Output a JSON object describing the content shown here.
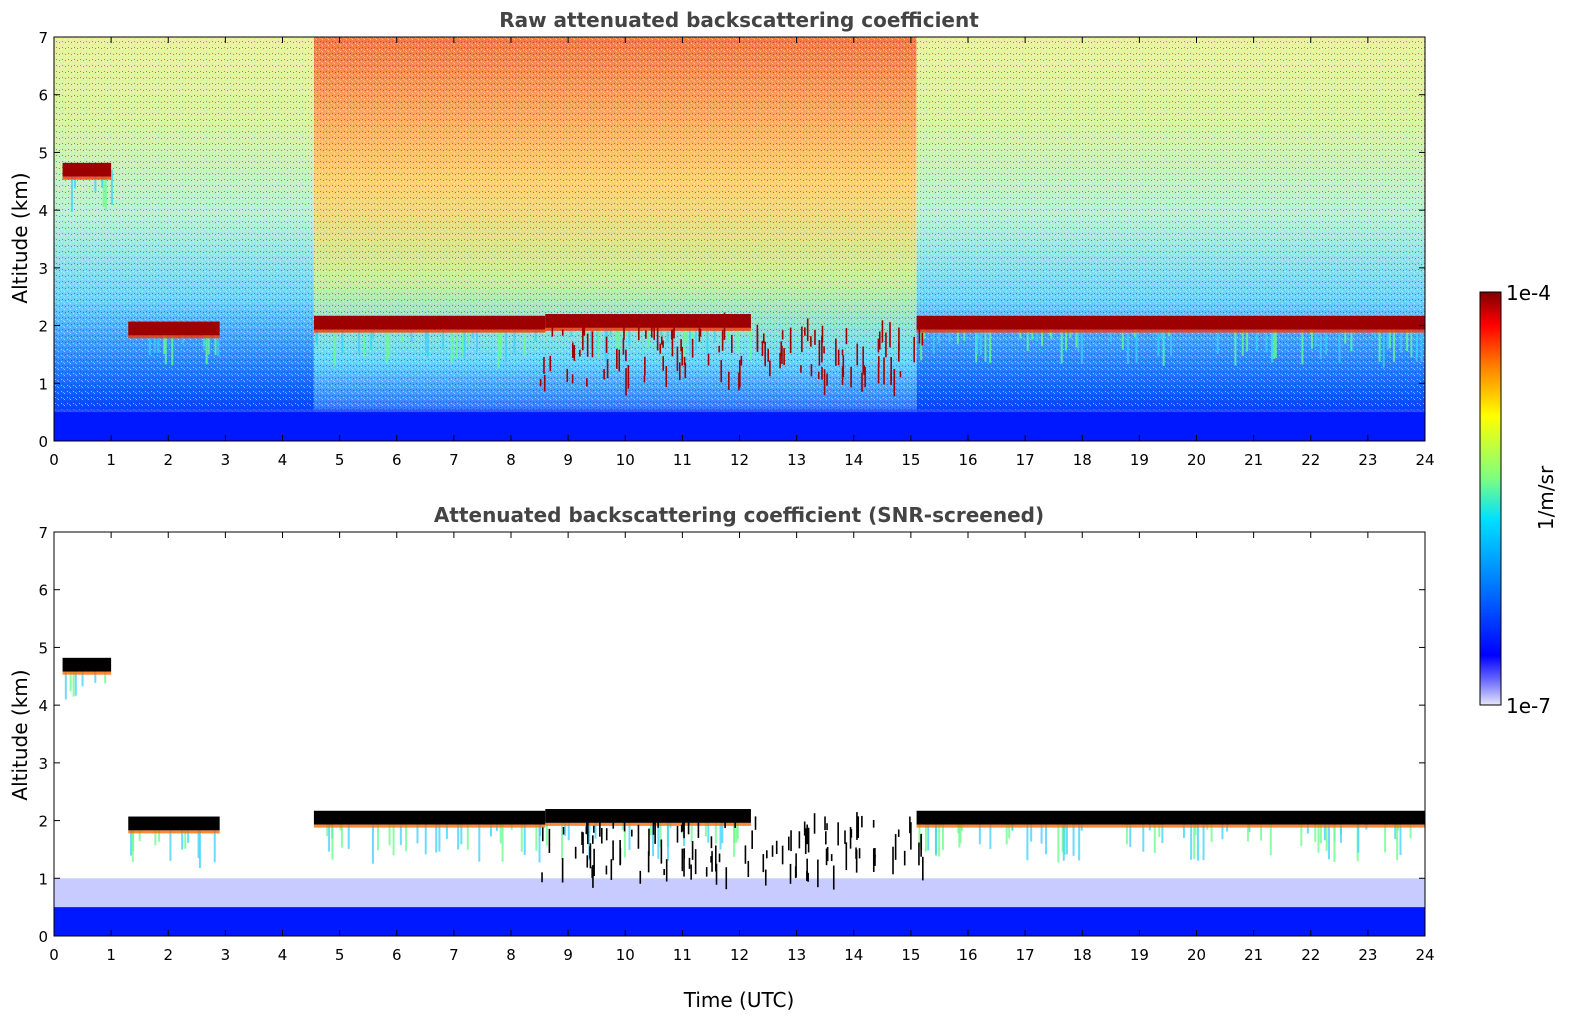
{
  "colors": {
    "jet_low": "#00007f",
    "jet_mid": "#7fff7f",
    "jet_high": "#7f0000",
    "lightest": "#e6e6fa",
    "cloud_top_screened": "#000000"
  },
  "chart_data": [
    {
      "type": "heatmap",
      "title": "Raw attenuated backscattering coefficient",
      "xlabel": "",
      "ylabel": "Altitude (km)",
      "xlim": [
        0,
        24
      ],
      "ylim": [
        0,
        7
      ],
      "xticks": [
        "0",
        "1",
        "2",
        "3",
        "4",
        "5",
        "6",
        "7",
        "8",
        "9",
        "10",
        "11",
        "12",
        "13",
        "14",
        "15",
        "16",
        "17",
        "18",
        "19",
        "20",
        "21",
        "22",
        "23",
        "24"
      ],
      "yticks": [
        "0",
        "1",
        "2",
        "3",
        "4",
        "5",
        "6",
        "7"
      ],
      "features": [
        {
          "name": "cloud layer",
          "t_start": 0.15,
          "t_end": 1.0,
          "alt_km": 4.7
        },
        {
          "name": "cloud layer",
          "t_start": 1.3,
          "t_end": 2.9,
          "alt_km": 1.95
        },
        {
          "name": "cloud layer",
          "t_start": 4.55,
          "t_end": 8.6,
          "alt_km": 2.05
        },
        {
          "name": "cloud layer",
          "t_start": 8.6,
          "t_end": 12.2,
          "alt_km": 2.08
        },
        {
          "name": "cloud layer",
          "t_start": 15.1,
          "t_end": 24.0,
          "alt_km": 2.05
        },
        {
          "name": "broken clouds",
          "t_start": 8.5,
          "t_end": 15.2,
          "alt_km": 1.5
        }
      ],
      "noise_increase_window": [
        4.55,
        15.1
      ]
    },
    {
      "type": "heatmap",
      "title": "Attenuated backscattering coefficient (SNR-screened)",
      "xlabel": "Time (UTC)",
      "ylabel": "Altitude (km)",
      "xlim": [
        0,
        24
      ],
      "ylim": [
        0,
        7
      ],
      "xticks": [
        "0",
        "1",
        "2",
        "3",
        "4",
        "5",
        "6",
        "7",
        "8",
        "9",
        "10",
        "11",
        "12",
        "13",
        "14",
        "15",
        "16",
        "17",
        "18",
        "19",
        "20",
        "21",
        "22",
        "23",
        "24"
      ],
      "yticks": [
        "0",
        "1",
        "2",
        "3",
        "4",
        "5",
        "6",
        "7"
      ],
      "features": [
        {
          "name": "cloud layer",
          "t_start": 0.15,
          "t_end": 1.0,
          "alt_km": 4.7
        },
        {
          "name": "cloud layer",
          "t_start": 1.3,
          "t_end": 2.9,
          "alt_km": 1.95
        },
        {
          "name": "cloud layer",
          "t_start": 4.55,
          "t_end": 8.6,
          "alt_km": 2.05
        },
        {
          "name": "cloud layer",
          "t_start": 8.6,
          "t_end": 12.2,
          "alt_km": 2.08
        },
        {
          "name": "cloud layer",
          "t_start": 15.1,
          "t_end": 24.0,
          "alt_km": 2.05
        },
        {
          "name": "broken clouds",
          "t_start": 8.5,
          "t_end": 15.2,
          "alt_km": 1.5
        }
      ]
    }
  ],
  "colorbar": {
    "label": "1/m/sr",
    "min_label": "1e-7",
    "max_label": "1e-4",
    "scale": "log",
    "colormap": "jet"
  }
}
